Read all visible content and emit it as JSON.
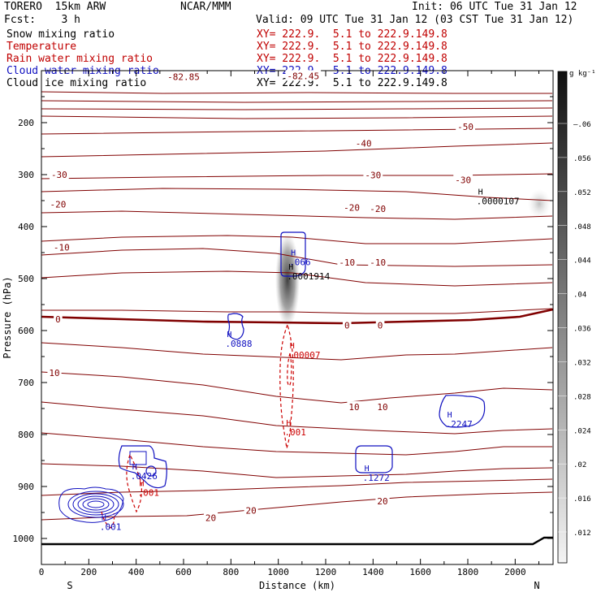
{
  "header": {
    "model": "TORERO  15km ARW",
    "org": "NCAR/MMM",
    "init": "Init: 06 UTC Tue 31 Jan 12",
    "fcst": "Fcst:    3 h",
    "valid": "Valid: 09 UTC Tue 31 Jan 12 (03 CST Tue 31 Jan 12)"
  },
  "legend": [
    {
      "label": "Snow mixing ratio",
      "xy": "XY= 222.9.  5.1 to 222.9.149.8",
      "color": "#000000"
    },
    {
      "label": "Temperature",
      "xy": "XY= 222.9.  5.1 to 222.9.149.8",
      "color": "#c00000"
    },
    {
      "label": "Rain water mixing ratio",
      "xy": "XY= 222.9.  5.1 to 222.9.149.8",
      "color": "#c00000"
    },
    {
      "label": "Cloud water mixing ratio",
      "xy": "XY= 222.9.  5.1 to 222.9.149.8",
      "color": "#1010c0"
    },
    {
      "label": "Cloud ice mixing ratio",
      "xy": "XY= 222.9.  5.1 to 222.9.149.8",
      "color": "#000000"
    }
  ],
  "chart_data": {
    "type": "cross-section contour",
    "xlabel": "Distance (km)",
    "ylabel": "Pressure (hPa)",
    "xlim": [
      0,
      2160
    ],
    "ylim": [
      1050,
      100
    ],
    "x_ticks": [
      0,
      200,
      400,
      600,
      800,
      1000,
      1200,
      1400,
      1600,
      1800,
      2000
    ],
    "y_ticks": [
      200,
      300,
      400,
      500,
      600,
      700,
      800,
      900,
      1000
    ],
    "x_end_labels": {
      "left": "S",
      "right": "N"
    },
    "colorbar": {
      "unit": "g kg⁻¹",
      "ticks": [
        "–.06",
        ".056",
        ".052",
        ".048",
        ".044",
        ".04",
        ".036",
        ".032",
        ".028",
        ".024",
        ".02",
        ".016",
        ".012"
      ],
      "values": [
        0.06,
        0.056,
        0.052,
        0.048,
        0.044,
        0.04,
        0.036,
        0.032,
        0.028,
        0.024,
        0.02,
        0.016,
        0.012
      ]
    },
    "temperature_labels": [
      {
        "text": "-82.85",
        "x": 600,
        "p": 112
      },
      {
        "text": "-82.45",
        "x": 1105,
        "p": 110
      },
      {
        "text": "-50",
        "x": 1790,
        "p": 208
      },
      {
        "text": "-40",
        "x": 1360,
        "p": 240
      },
      {
        "text": "-30",
        "x": 75,
        "p": 300
      },
      {
        "text": "-30",
        "x": 1400,
        "p": 301
      },
      {
        "text": "-30",
        "x": 1780,
        "p": 310
      },
      {
        "text": "-20",
        "x": 70,
        "p": 357
      },
      {
        "text": "-20",
        "x": 1310,
        "p": 363
      },
      {
        "text": "-20",
        "x": 1420,
        "p": 366
      },
      {
        "text": "-10",
        "x": 85,
        "p": 440
      },
      {
        "text": "-10",
        "x": 1290,
        "p": 469
      },
      {
        "text": "-10",
        "x": 1420,
        "p": 469
      },
      {
        "text": "0",
        "x": 70,
        "p": 578
      },
      {
        "text": "0",
        "x": 1290,
        "p": 590
      },
      {
        "text": "0",
        "x": 1430,
        "p": 590
      },
      {
        "text": "10",
        "x": 55,
        "p": 681
      },
      {
        "text": "10",
        "x": 1320,
        "p": 747
      },
      {
        "text": "10",
        "x": 1440,
        "p": 747
      },
      {
        "text": "20",
        "x": 715,
        "p": 960
      },
      {
        "text": "20",
        "x": 885,
        "p": 946
      },
      {
        "text": "20",
        "x": 1440,
        "p": 928
      }
    ],
    "maxima": [
      {
        "field": "cloud_water",
        "value": ".066",
        "x": 1060,
        "p": 463
      },
      {
        "field": "cloud_ice",
        "value": ".0001914",
        "x": 1050,
        "p": 491
      },
      {
        "field": "cloud_water",
        "value": ".0888",
        "x": 790,
        "p": 620
      },
      {
        "field": "rain_water",
        "value": ".00007",
        "x": 1055,
        "p": 642
      },
      {
        "field": "rain_water",
        "value": ".001",
        "x": 1040,
        "p": 791
      },
      {
        "field": "cloud_water",
        "value": ".2247",
        "x": 1720,
        "p": 775
      },
      {
        "field": "cloud_water",
        "value": ".1272",
        "x": 1370,
        "p": 878
      },
      {
        "field": "cloud_water",
        "value": ".0426",
        "x": 390,
        "p": 875
      },
      {
        "field": "rain_water",
        "value": ".001",
        "x": 420,
        "p": 907
      },
      {
        "field": "cloud_water",
        "value": ".001",
        "x": 260,
        "p": 973
      },
      {
        "field": "snow",
        "value": ".0000107",
        "x": 1850,
        "p": 346
      }
    ]
  }
}
